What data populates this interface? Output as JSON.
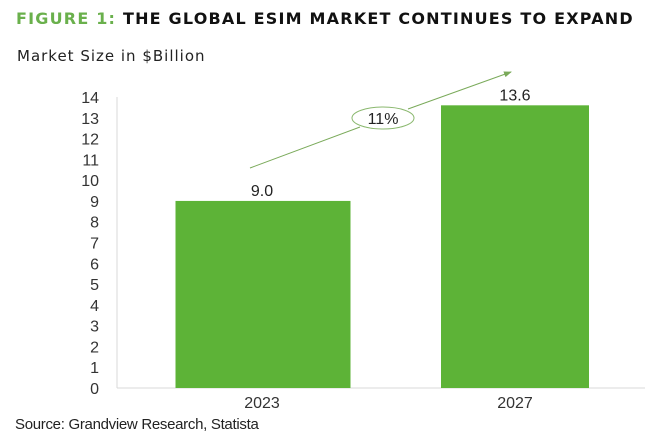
{
  "figure": {
    "title_prefix": "FIGURE 1:",
    "title_main": "THE GLOBAL ESIM MARKET CONTINUES TO EXPAND",
    "source": "Source: Grandview Research, Statista"
  },
  "colors": {
    "accent": "#6ab04c",
    "bar": "#5db337",
    "trend": "#7aaa5a"
  },
  "chart_data": {
    "type": "bar",
    "title": "THE GLOBAL ESIM MARKET CONTINUES TO EXPAND",
    "xlabel": "",
    "ylabel": "Market Size in $Billion",
    "categories": [
      "2023",
      "2027"
    ],
    "values": [
      9.0,
      13.6
    ],
    "data_labels": [
      "9.0",
      "13.6"
    ],
    "ylim": [
      0,
      14
    ],
    "yticks": [
      0,
      1,
      2,
      3,
      4,
      5,
      6,
      7,
      8,
      9,
      10,
      11,
      12,
      13,
      14
    ],
    "grid": false,
    "annotation": {
      "text": "11%",
      "type": "trend-arrow",
      "meaning": "growth rate 2023-2027"
    }
  }
}
